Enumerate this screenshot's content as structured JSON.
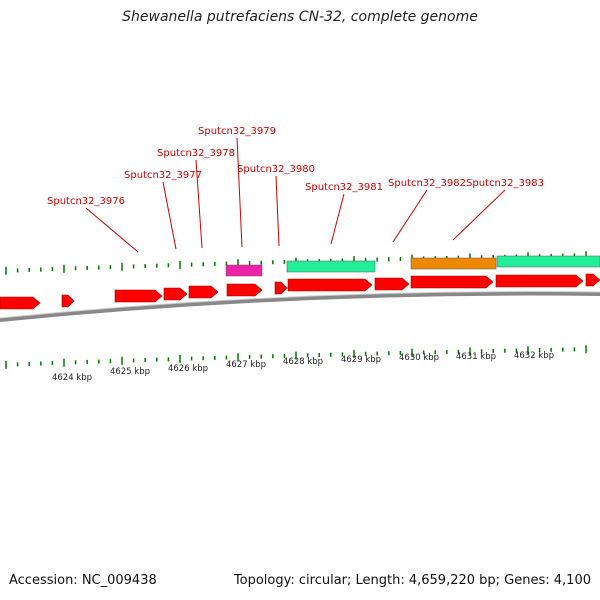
{
  "title": "Shewanella putrefaciens CN-32, complete genome",
  "footer": {
    "accession": "Accession: NC_009438",
    "summary": "Topology: circular; Length: 4,659,220 bp; Genes: 4,100"
  },
  "colors": {
    "cds": "#ff0000",
    "backbone": "#888888",
    "gc_tick": "#007700",
    "label": "#cc0000",
    "feature_magenta": "#ee22aa",
    "feature_green": "#22ee99",
    "feature_orange": "#ee8800"
  },
  "gene_labels": [
    "Sputcn32_3976",
    "Sputcn32_3977",
    "Sputcn32_3978",
    "Sputcn32_3979",
    "Sputcn32_3980",
    "Sputcn32_3981",
    "Sputcn32_3982",
    "Sputcn32_3983"
  ],
  "kbp_ticks": [
    "4624 kbp",
    "4625 kbp",
    "4626 kbp",
    "4627 kbp",
    "4628 kbp",
    "4629 kbp",
    "4630 kbp",
    "4631 kbp",
    "4632 kbp"
  ]
}
